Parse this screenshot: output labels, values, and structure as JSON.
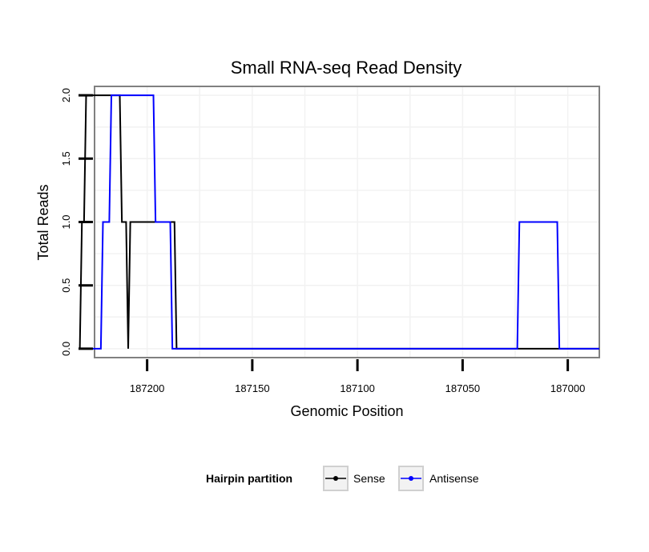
{
  "chart_data": {
    "type": "line",
    "title": "Small RNA-seq Read Density",
    "xlabel": "Genomic Position",
    "ylabel": "Total Reads",
    "x_reversed": true,
    "xlim": [
      187225,
      186985
    ],
    "ylim": [
      -0.07,
      2.07
    ],
    "x_ticks": [
      187200,
      187150,
      187100,
      187050,
      187000
    ],
    "x_tick_labels": [
      "187200",
      "187150",
      "187100",
      "187050",
      "187000"
    ],
    "y_ticks": [
      0.0,
      0.5,
      1.0,
      1.5,
      2.0
    ],
    "y_tick_labels": [
      "0.0",
      "0.5",
      "1.0",
      "1.5",
      "2.0"
    ],
    "grid": true,
    "legend": {
      "title": "Hairpin partition",
      "placement": "bottom"
    },
    "series": [
      {
        "name": "Sense",
        "color": "#000000",
        "x": [
          187232,
          187231,
          187230,
          187229,
          187213,
          187212,
          187210,
          187209,
          187208,
          187207,
          187206,
          187205,
          187187,
          187186,
          187185,
          186985
        ],
        "y": [
          0,
          1,
          1,
          2,
          2,
          1,
          1,
          0,
          1,
          1,
          1,
          1,
          1,
          0,
          0,
          0
        ]
      },
      {
        "name": "Antisense",
        "color": "#0000ff",
        "x": [
          187232,
          187222,
          187221,
          187218,
          187217,
          187197,
          187196,
          187189,
          187188,
          187186,
          187185,
          187024,
          187023,
          187005,
          187004,
          186985
        ],
        "y": [
          0,
          0,
          1,
          1,
          2,
          2,
          1,
          1,
          0,
          0,
          0,
          0,
          1,
          1,
          0,
          0
        ]
      }
    ]
  }
}
